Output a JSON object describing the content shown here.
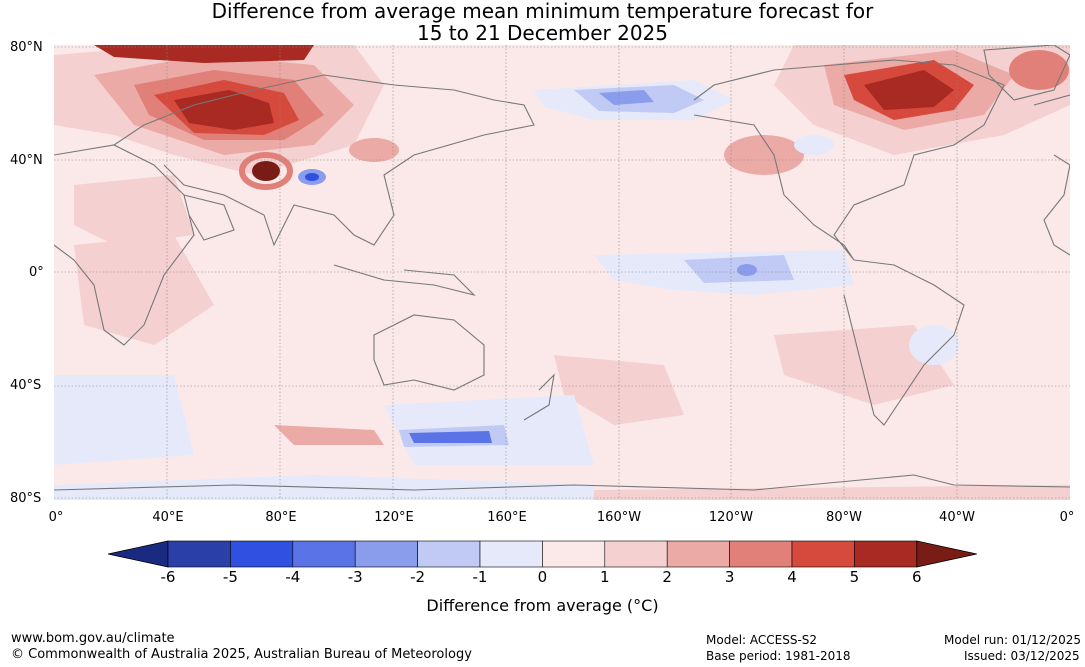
{
  "title": {
    "line1": "Difference from average mean minimum temperature forecast for",
    "line2": "15 to 21 December 2025"
  },
  "map": {
    "lat_labels": [
      "80°N",
      "40°N",
      "0°",
      "40°S",
      "80°S"
    ],
    "lon_labels": [
      "0°",
      "40°E",
      "80°E",
      "120°E",
      "160°E",
      "160°W",
      "120°W",
      "80°W",
      "40°W",
      "0°"
    ]
  },
  "colorbar": {
    "ticks": [
      "-6",
      "-5",
      "-4",
      "-3",
      "-2",
      "-1",
      "0",
      "1",
      "2",
      "3",
      "4",
      "5",
      "6"
    ],
    "colors": [
      "#2b3fa8",
      "#2f50e0",
      "#5a73e6",
      "#8a9cec",
      "#c0caf4",
      "#e6e9fa",
      "#fbe9e9",
      "#f5d0d0",
      "#ecaaa6",
      "#e08079",
      "#d6493d",
      "#a82a22"
    ],
    "low_color": "#1a2a80",
    "high_color": "#7a1c16",
    "title": "Difference from average (°C)"
  },
  "footer": {
    "website": "www.bom.gov.au/climate",
    "copyright": "© Commonwealth of Australia 2025, Australian Bureau of Meteorology",
    "model": "Model: ACCESS-S2",
    "base_period": "Base period: 1981-2018",
    "model_run": "Model run: 01/12/2025",
    "issued": "Issued: 03/12/2025"
  }
}
